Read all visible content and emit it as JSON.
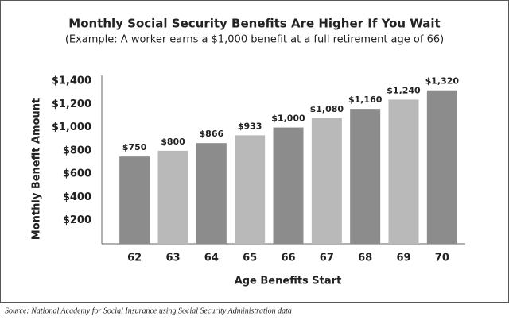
{
  "chart_data": {
    "type": "bar",
    "title": "Monthly Social Security Benefits Are Higher If You Wait",
    "subtitle": "(Example: A worker earns a $1,000 benefit at a full retirement age of 66)",
    "x_label": "Age Benefits Start",
    "y_label": "Monthly Benefit Amount",
    "source": "Source: National Academy for Social Insurance using Social Security Administration data",
    "categories": [
      "62",
      "63",
      "64",
      "65",
      "66",
      "67",
      "68",
      "69",
      "70"
    ],
    "values": [
      750,
      800,
      866,
      933,
      1000,
      1080,
      1160,
      1240,
      1320
    ],
    "value_labels": [
      "$750",
      "$800",
      "$866",
      "$933",
      "$1,000",
      "$1,080",
      "$1,160",
      "$1,240",
      "$1,320"
    ],
    "colors": [
      "#8c8c8c",
      "#b9b9b9",
      "#8c8c8c",
      "#b9b9b9",
      "#8c8c8c",
      "#b9b9b9",
      "#8c8c8c",
      "#b9b9b9",
      "#8c8c8c"
    ],
    "ylim": [
      0,
      1400
    ],
    "yticks": [
      {
        "value": 200,
        "label": "$200"
      },
      {
        "value": 400,
        "label": "$400"
      },
      {
        "value": 600,
        "label": "$600"
      },
      {
        "value": 800,
        "label": "$800"
      },
      {
        "value": 1000,
        "label": "$1,000"
      },
      {
        "value": 1200,
        "label": "$1,200"
      },
      {
        "value": 1400,
        "label": "$1,400"
      }
    ],
    "grid": false
  }
}
